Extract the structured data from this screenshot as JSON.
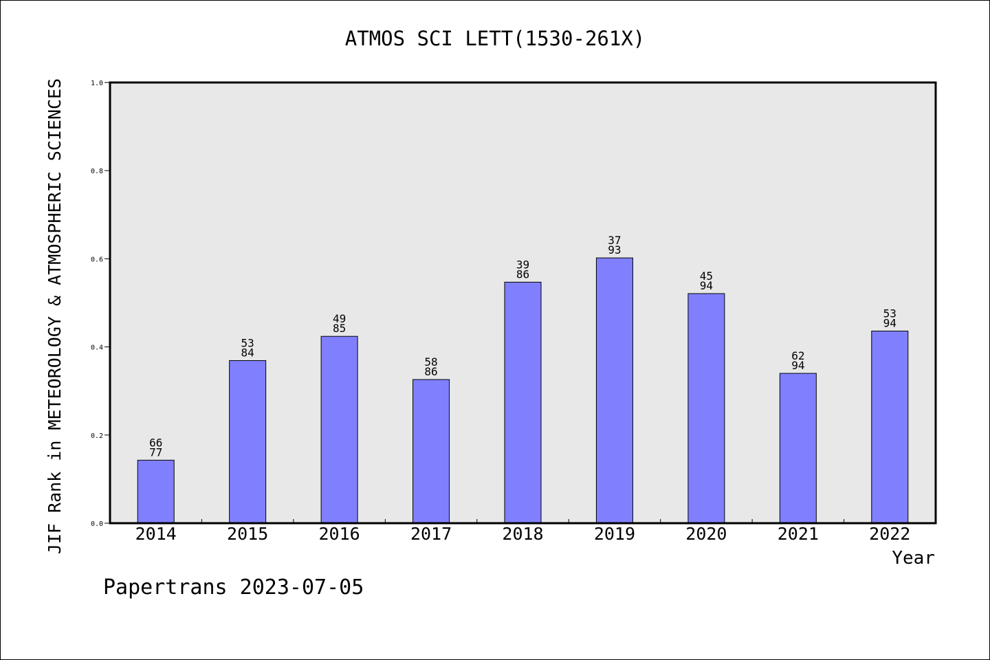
{
  "chart_data": {
    "type": "bar",
    "title": "ATMOS SCI LETT(1530-261X)",
    "xlabel": "Year",
    "ylabel": "JIF Rank in METEOROLOGY & ATMOSPHERIC SCIENCES",
    "ylim": [
      0,
      1.0
    ],
    "yticks": [
      "0.0",
      "0.2",
      "0.4",
      "0.6",
      "0.8",
      "1.0"
    ],
    "grid": false,
    "categories": [
      "2014",
      "2015",
      "2016",
      "2017",
      "2018",
      "2019",
      "2020",
      "2021",
      "2022"
    ],
    "values": [
      0.143,
      0.369,
      0.424,
      0.326,
      0.547,
      0.602,
      0.521,
      0.34,
      0.436
    ],
    "bar_labels": [
      [
        "66",
        "77"
      ],
      [
        "53",
        "84"
      ],
      [
        "49",
        "85"
      ],
      [
        "58",
        "86"
      ],
      [
        "39",
        "86"
      ],
      [
        "37",
        "93"
      ],
      [
        "45",
        "94"
      ],
      [
        "62",
        "94"
      ],
      [
        "53",
        "94"
      ]
    ],
    "colors": {
      "bar": "#8080ff",
      "plot_bg": "#e8e8e8",
      "axis": "#000000"
    }
  },
  "footer": {
    "credit": "Papertrans 2023-07-05"
  }
}
